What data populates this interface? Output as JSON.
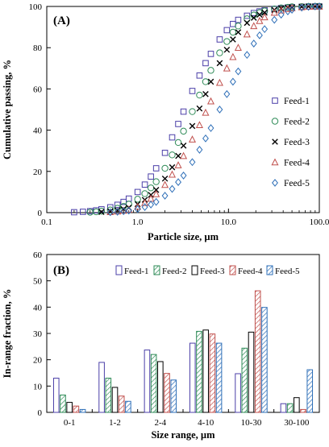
{
  "chart_data": [
    {
      "type": "scatter",
      "panel_label": "(A)",
      "xlabel": "Particle size, µm",
      "ylabel": "Cumulative passing, %",
      "x_scale": "log",
      "xlim": [
        0.1,
        100
      ],
      "ylim": [
        0,
        100
      ],
      "x_ticks": [
        "0.1",
        "1.0",
        "10.0",
        "100.0"
      ],
      "y_ticks": [
        "0",
        "20",
        "40",
        "60",
        "80",
        "100"
      ],
      "legend_position": "right",
      "series": [
        {
          "name": "Feed-1",
          "color": "#4B3FA8",
          "marker": "square",
          "x": [
            0.2,
            0.25,
            0.3,
            0.35,
            0.4,
            0.5,
            0.6,
            0.7,
            0.8,
            1.0,
            1.2,
            1.4,
            1.6,
            2.0,
            2.4,
            2.8,
            3.2,
            4.0,
            4.8,
            5.6,
            6.4,
            8,
            9.6,
            11.2,
            12.8,
            16,
            19,
            22,
            25,
            32,
            38,
            45,
            50,
            64,
            76,
            90,
            100
          ],
          "y": [
            0.2,
            0.4,
            0.7,
            1.1,
            1.6,
            2.6,
            3.8,
            5.2,
            6.8,
            10,
            13.6,
            17.5,
            21.5,
            29,
            36.5,
            43,
            49,
            59,
            66.5,
            72.5,
            77,
            84,
            88.5,
            91.5,
            93.5,
            95.5,
            96.8,
            97.6,
            98.1,
            98.8,
            99.2,
            99.5,
            99.7,
            99.85,
            99.95,
            100,
            100
          ]
        },
        {
          "name": "Feed-2",
          "color": "#2E8B57",
          "marker": "circle",
          "x": [
            0.3,
            0.35,
            0.4,
            0.5,
            0.6,
            0.7,
            0.8,
            1.0,
            1.2,
            1.4,
            1.6,
            2.0,
            2.4,
            2.8,
            3.2,
            4.0,
            4.8,
            5.6,
            6.4,
            8,
            9.6,
            11.2,
            12.8,
            16,
            19,
            22,
            25,
            32,
            38,
            45,
            50,
            64,
            76,
            90,
            100
          ],
          "y": [
            0.2,
            0.4,
            0.7,
            1.3,
            2.1,
            3.0,
            4.1,
            6.5,
            9.2,
            12,
            15,
            21.5,
            28,
            34,
            39.5,
            49,
            57,
            63.5,
            69,
            77.5,
            83,
            87.5,
            90.5,
            94,
            95.8,
            97,
            97.8,
            98.8,
            99.3,
            99.6,
            99.8,
            99.9,
            100,
            100,
            100
          ]
        },
        {
          "name": "Feed-3",
          "color": "#000000",
          "marker": "cross",
          "x": [
            0.4,
            0.5,
            0.6,
            0.7,
            0.8,
            1.0,
            1.2,
            1.4,
            1.6,
            2.0,
            2.4,
            2.8,
            3.2,
            4.0,
            4.8,
            5.6,
            6.4,
            8,
            9.6,
            11.2,
            12.8,
            16,
            19,
            22,
            25,
            32,
            38,
            45,
            50,
            64,
            76,
            90,
            100
          ],
          "y": [
            0.3,
            0.6,
            1.1,
            1.7,
            2.4,
            4.1,
            6.2,
            8.6,
            11,
            16.5,
            22,
            27.5,
            32.5,
            42,
            50.5,
            57.5,
            63.5,
            72.5,
            79,
            84,
            87.5,
            92,
            94.5,
            96,
            97,
            98.3,
            99,
            99.4,
            99.6,
            99.85,
            100,
            100,
            100
          ]
        },
        {
          "name": "Feed-4",
          "color": "#C0504D",
          "marker": "triangle",
          "x": [
            0.5,
            0.6,
            0.7,
            0.8,
            1.0,
            1.2,
            1.4,
            1.6,
            2.0,
            2.4,
            2.8,
            3.2,
            4.0,
            4.8,
            5.6,
            6.4,
            8,
            9.6,
            11.2,
            12.8,
            16,
            19,
            22,
            25,
            32,
            38,
            45,
            50,
            64,
            76,
            90,
            100
          ],
          "y": [
            0.3,
            0.6,
            1.0,
            1.5,
            2.9,
            4.7,
            6.8,
            9,
            13.5,
            18.5,
            23,
            27.5,
            35.5,
            42.5,
            48.5,
            54,
            63,
            70,
            75.5,
            80,
            86.5,
            90.5,
            93,
            94.8,
            97,
            98.1,
            98.8,
            99.2,
            99.7,
            99.9,
            100,
            100
          ]
        },
        {
          "name": "Feed-5",
          "color": "#2E6FB8",
          "marker": "diamond",
          "x": [
            0.5,
            0.6,
            0.7,
            0.8,
            1.0,
            1.2,
            1.4,
            1.6,
            2.0,
            2.4,
            2.8,
            3.2,
            4.0,
            4.8,
            5.6,
            6.4,
            8,
            9.6,
            11.2,
            12.8,
            16,
            19,
            22,
            25,
            32,
            38,
            45,
            50,
            64,
            76,
            90,
            100
          ],
          "y": [
            0.2,
            0.4,
            0.7,
            1.0,
            1.7,
            2.7,
            3.9,
            5.2,
            8.2,
            11.5,
            14.8,
            18,
            24.5,
            30.5,
            36,
            41,
            50,
            57.5,
            63.5,
            68.5,
            76.5,
            82,
            86,
            89,
            93.5,
            96,
            97.6,
            98.4,
            99.4,
            99.8,
            100,
            100
          ]
        }
      ]
    },
    {
      "type": "bar",
      "panel_label": "(B)",
      "xlabel": "Size range, µm",
      "ylabel": "In-range fraction, %",
      "ylim": [
        0,
        60
      ],
      "y_ticks": [
        "0",
        "10",
        "20",
        "30",
        "40",
        "50",
        "60"
      ],
      "legend_position": "top-center",
      "categories": [
        "0-1",
        "1-2",
        "2-4",
        "4-10",
        "10-30",
        "30-100"
      ],
      "series": [
        {
          "name": "Feed-1",
          "color": "#4B3FA8",
          "fill": "white",
          "values": [
            13,
            19,
            23.7,
            26.3,
            14.7,
            3.3
          ]
        },
        {
          "name": "Feed-2",
          "color": "#2E8B57",
          "fill": "hatch",
          "values": [
            6.6,
            13,
            22,
            30.8,
            24.4,
            3.3
          ]
        },
        {
          "name": "Feed-3",
          "color": "#000000",
          "fill": "white",
          "values": [
            3.8,
            9.5,
            19.3,
            31.3,
            30.5,
            5.6
          ]
        },
        {
          "name": "Feed-4",
          "color": "#C0504D",
          "fill": "hatch",
          "values": [
            2.4,
            6.2,
            14.8,
            29.8,
            46.2,
            1.1
          ]
        },
        {
          "name": "Feed-5",
          "color": "#2E6FB8",
          "fill": "hatch",
          "values": [
            1.1,
            4.2,
            12.3,
            26.3,
            39.9,
            16.2
          ]
        }
      ]
    }
  ]
}
